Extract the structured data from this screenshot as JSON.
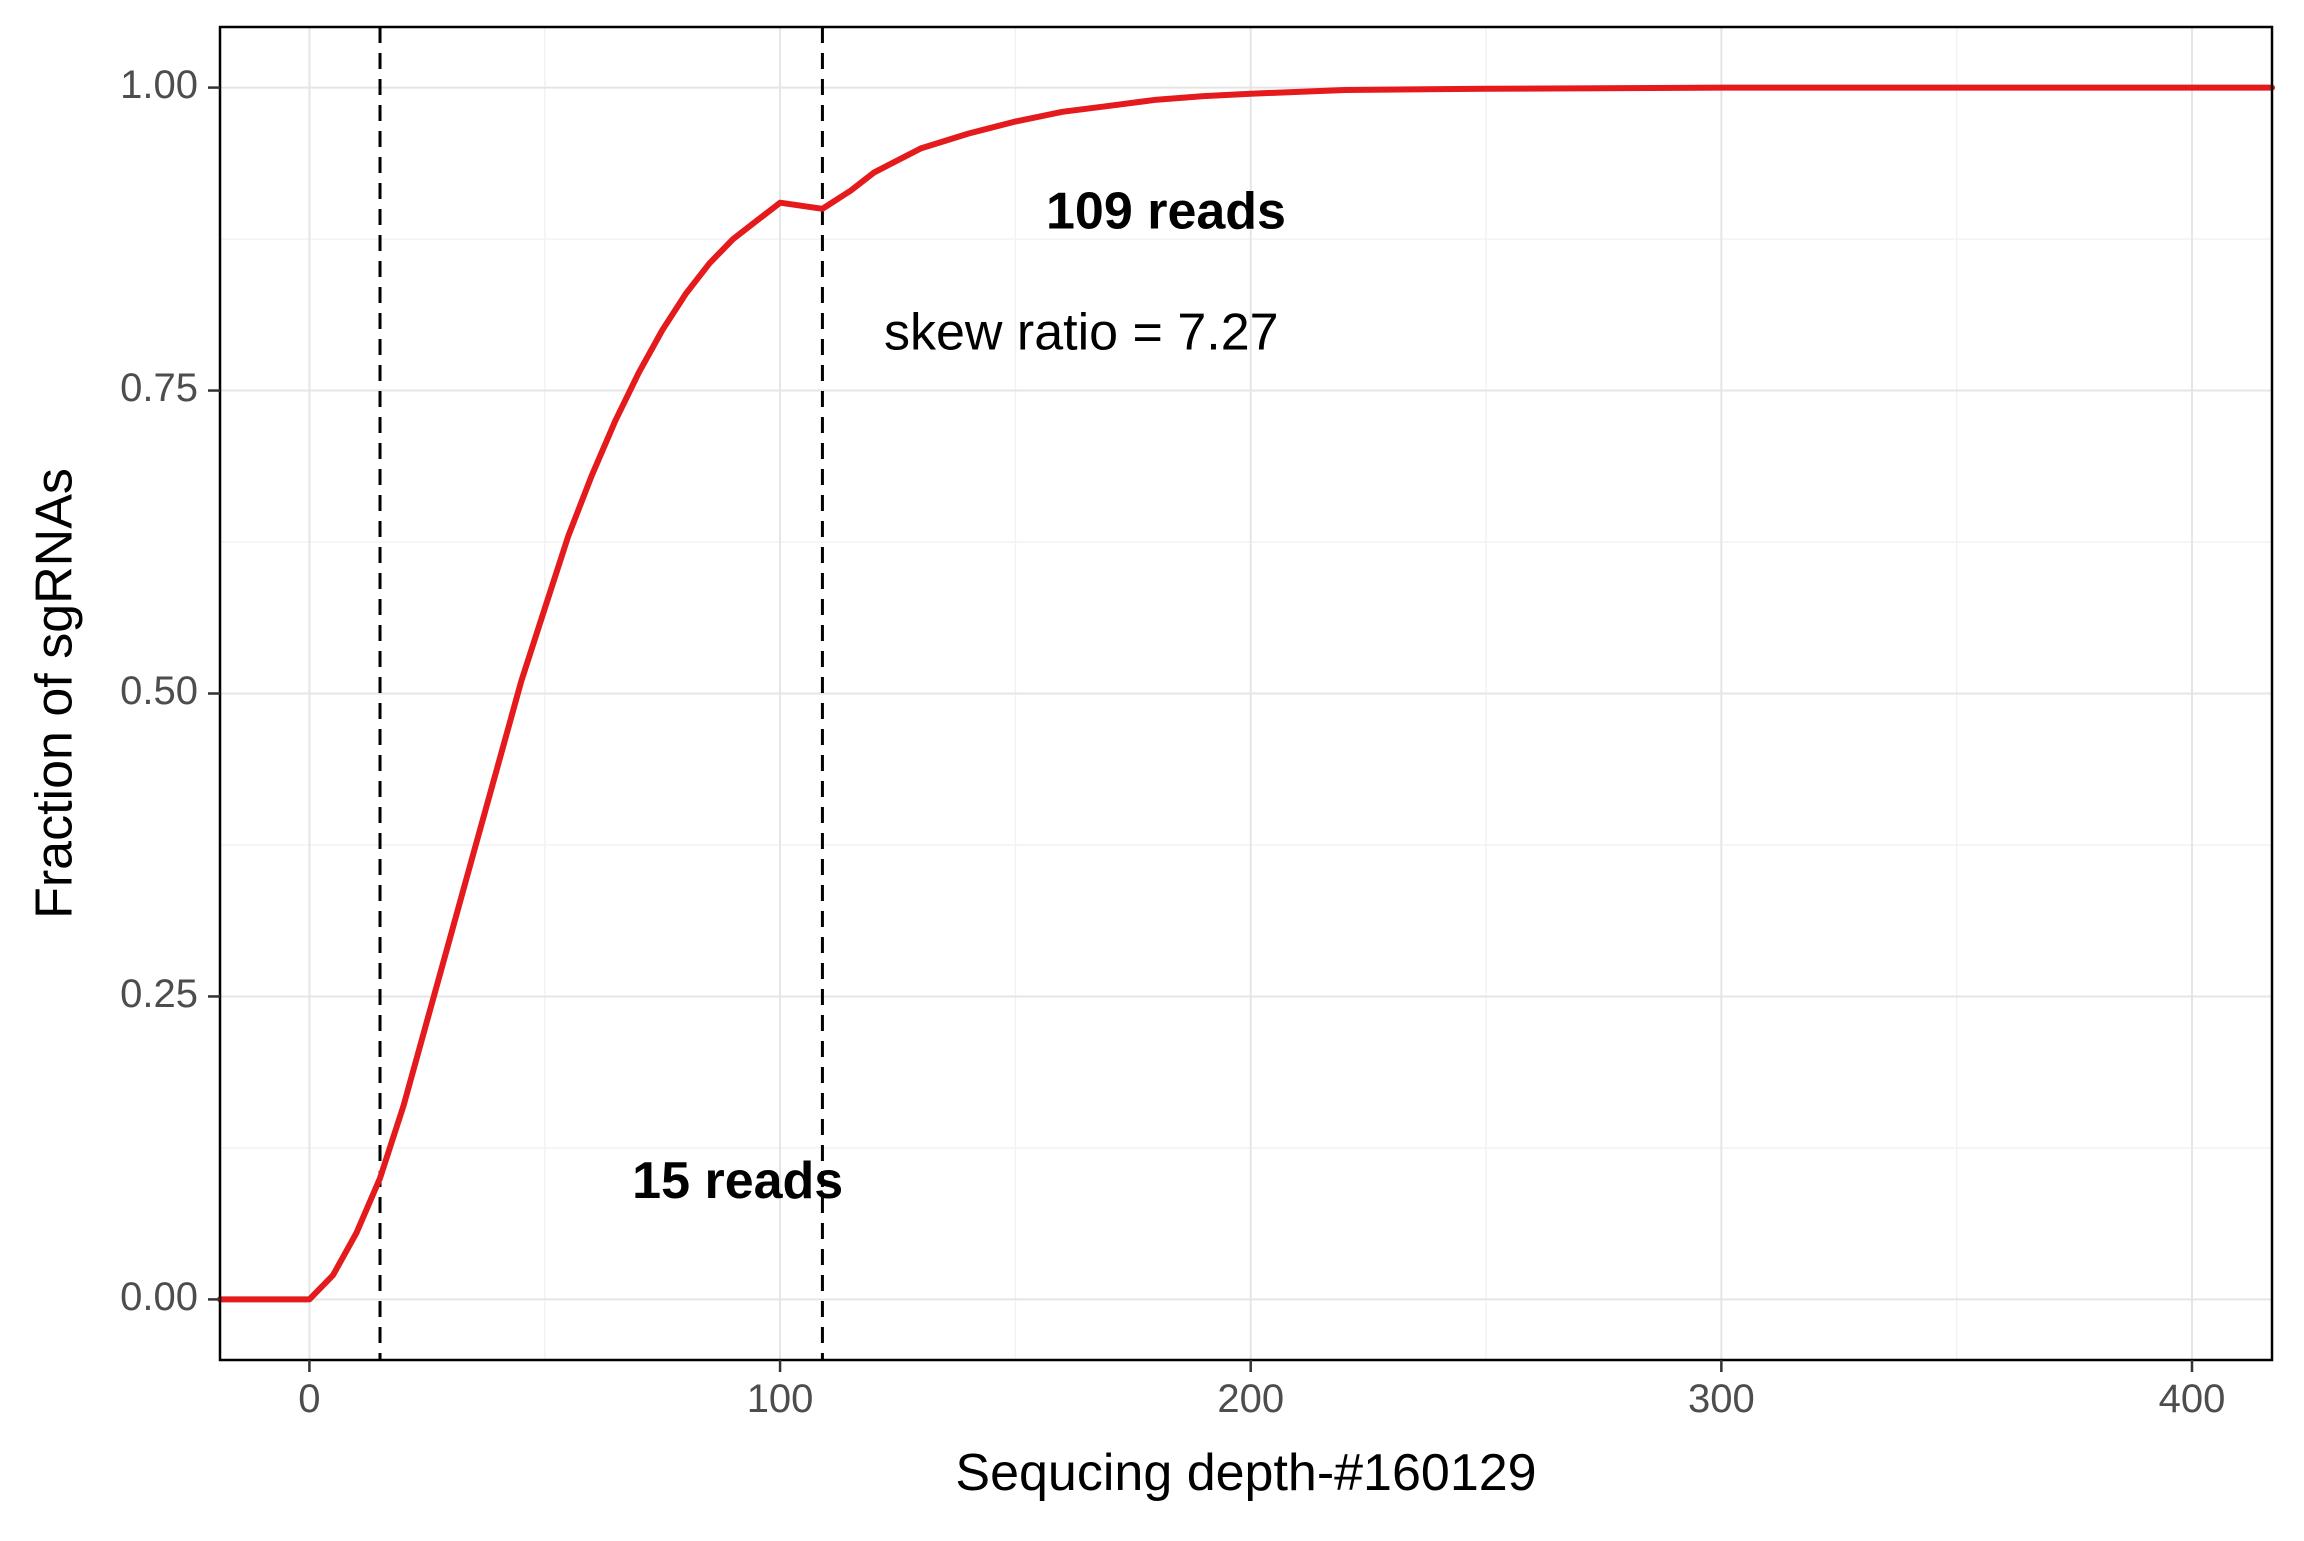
{
  "chart_data": {
    "type": "line",
    "title": "",
    "xlabel": "Sequcing depth-#160129",
    "ylabel": "Fraction of sgRNAs",
    "xlim": [
      -19,
      417
    ],
    "ylim": [
      -0.05,
      1.05
    ],
    "x_ticks": [
      0,
      100,
      200,
      300,
      400
    ],
    "x_tick_labels": [
      "0",
      "100",
      "200",
      "300",
      "400"
    ],
    "y_ticks": [
      0,
      0.25,
      0.5,
      0.75,
      1.0
    ],
    "y_tick_labels": [
      "0.00",
      "0.25",
      "0.50",
      "0.75",
      "1.00"
    ],
    "grid": true,
    "legend": "none",
    "series": [
      {
        "color": "#e41a1c",
        "x": [
          -19,
          0,
          5,
          10,
          15,
          20,
          25,
          30,
          35,
          40,
          45,
          50,
          55,
          60,
          65,
          70,
          75,
          80,
          85,
          90,
          95,
          100,
          109,
          115,
          120,
          130,
          140,
          150,
          160,
          170,
          180,
          190,
          200,
          220,
          250,
          300,
          350,
          417
        ],
        "y": [
          0,
          0,
          0.02,
          0.055,
          0.1,
          0.16,
          0.23,
          0.3,
          0.37,
          0.44,
          0.51,
          0.57,
          0.63,
          0.68,
          0.725,
          0.765,
          0.8,
          0.83,
          0.855,
          0.875,
          0.89,
          0.905,
          0.9,
          0.915,
          0.93,
          0.95,
          0.962,
          0.972,
          0.98,
          0.985,
          0.99,
          0.993,
          0.995,
          0.998,
          0.999,
          1.0,
          1.0,
          1.0
        ]
      }
    ],
    "vlines": [
      {
        "x": 15,
        "style": "dashed",
        "color": "#000000"
      },
      {
        "x": 109,
        "style": "dashed",
        "color": "#000000"
      }
    ],
    "annotations": [
      {
        "text": "109 reads",
        "x": 182,
        "y": 0.895,
        "weight": "bold"
      },
      {
        "text": "skew ratio = 7.27",
        "x": 164,
        "y": 0.795,
        "weight": "normal"
      },
      {
        "text": "15 reads",
        "x": 91,
        "y": 0.095,
        "weight": "bold"
      }
    ],
    "colors": {
      "panel_border": "#000000",
      "grid_major": "#e5e5e5",
      "grid_minor": "#f2f2f2",
      "tick_label": "#4d4d4d",
      "line": "#e41a1c"
    }
  }
}
